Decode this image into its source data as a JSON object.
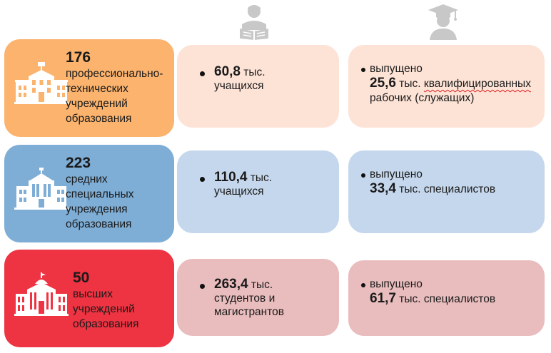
{
  "colors": {
    "row1_strong": "#fbb36e",
    "row1_light": "#fde3d6",
    "row2_strong": "#7eadd5",
    "row2_light": "#c5d7ec",
    "row3_strong": "#ee3342",
    "row3_light": "#e9bcbd",
    "icon_gray": "#c8c8c8"
  },
  "header_icons": [
    "student-reading-icon",
    "graduate-icon"
  ],
  "rows": [
    {
      "icon": "school-building-icon",
      "count": "176",
      "institution": "профессионально-технических учреждений образования",
      "enrolled_value": "60,8",
      "enrolled_unit": "тыс.",
      "enrolled_label": "учащихся",
      "graduated_prefix": "выпущено",
      "graduated_value": "25,6",
      "graduated_unit": "тыс.",
      "graduated_label_a": "квалифицированных",
      "graduated_label_b": "рабочих (служащих)"
    },
    {
      "icon": "college-building-icon",
      "count": "223",
      "institution": "средних специальных учреждения образования",
      "enrolled_value": "110,4",
      "enrolled_unit": "тыс.",
      "enrolled_label": "учащихся",
      "graduated_prefix": "выпущено",
      "graduated_value": "33,4",
      "graduated_unit": "тыс.",
      "graduated_label_a": "специалистов",
      "graduated_label_b": ""
    },
    {
      "icon": "university-building-icon",
      "count": "50",
      "institution": "высших учреждений образования",
      "enrolled_value": "263,4",
      "enrolled_unit": "тыс.",
      "enrolled_label": "студентов и магистрантов",
      "graduated_prefix": "выпущено",
      "graduated_value": "61,7",
      "graduated_unit": "тыс.",
      "graduated_label_a": "специалистов",
      "graduated_label_b": ""
    }
  ]
}
